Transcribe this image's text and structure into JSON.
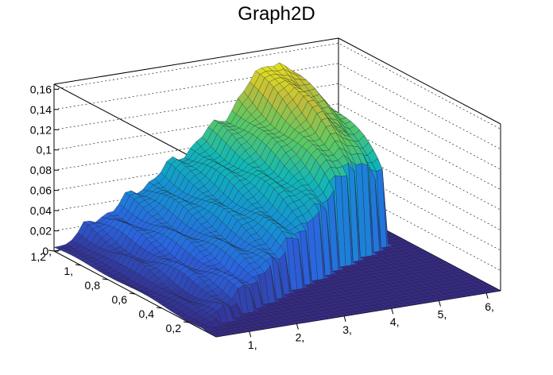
{
  "chart_data": {
    "type": "surface",
    "title": "Graph2D",
    "x_ticks": [
      "1,",
      "2,",
      "3,",
      "4,",
      "5,",
      "6,"
    ],
    "y_ticks": [
      "0,2",
      "0,4",
      "0,6",
      "0,8",
      "1,",
      "1,2"
    ],
    "z_ticks": [
      "0,",
      "0,02",
      "0,04",
      "0,06",
      "0,08",
      "0,1",
      "0,12",
      "0,14",
      "0,16"
    ],
    "xlim": [
      0.3,
      6.3
    ],
    "ylim": [
      0.0,
      1.2
    ],
    "zlim": [
      0,
      0.165
    ],
    "colormap": [
      "#352a87",
      "#2b63e0",
      "#1591d4",
      "#11b7b6",
      "#5cc863",
      "#bfbc3a",
      "#f9fb0e"
    ],
    "surface_description": "z rises with x (up to ~0.16 near x=5) and with y; surface drops to 0 where y < ~0.6*x/6 region",
    "ridge_values": [
      {
        "x": 0.5,
        "z": 0.004
      },
      {
        "x": 1.0,
        "z": 0.02
      },
      {
        "x": 2.0,
        "z": 0.045
      },
      {
        "x": 3.0,
        "z": 0.075
      },
      {
        "x": 4.0,
        "z": 0.11
      },
      {
        "x": 4.8,
        "z": 0.155
      },
      {
        "x": 5.3,
        "z": 0.14
      },
      {
        "x": 5.7,
        "z": 0.12
      }
    ]
  }
}
